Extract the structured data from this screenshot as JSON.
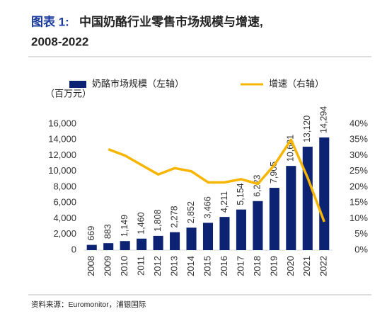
{
  "chart_data": {
    "type": "bar",
    "title_label": "图表 1:",
    "title": "中国奶酪行业零售市场规模与增速,",
    "subtitle": "2008-2022",
    "y_label": "（百万元）",
    "source": "资料来源：Euromonitor，浦银国际",
    "categories": [
      "2008",
      "2009",
      "2010",
      "2011",
      "2012",
      "2013",
      "2014",
      "2015",
      "2016",
      "2017",
      "2018",
      "2019",
      "2020",
      "2021",
      "2022"
    ],
    "series": [
      {
        "name": "奶酪市场规模（左轴）",
        "type": "bar",
        "color": "#0c2374",
        "values": [
          669,
          883,
          1149,
          1460,
          1808,
          2278,
          2852,
          3466,
          4211,
          5154,
          6223,
          7905,
          10681,
          13120,
          14294
        ],
        "value_labels": [
          "669",
          "883",
          "1,149",
          "1,460",
          "1,808",
          "2,278",
          "2,852",
          "3,466",
          "4,211",
          "5,154",
          "6,223",
          "7,905",
          "10,681",
          "13,120",
          "14,294"
        ]
      },
      {
        "name": "增速（右轴）",
        "type": "line",
        "color": "#f7b500",
        "axis": "y2",
        "values": [
          null,
          32,
          30,
          27,
          24,
          26,
          25,
          21.5,
          21.5,
          22.5,
          21,
          27,
          35,
          23,
          9
        ]
      }
    ],
    "ylim": [
      0,
      16000
    ],
    "yticks": [
      {
        "value": 0,
        "label": "0"
      },
      {
        "value": 2000,
        "label": "2,000"
      },
      {
        "value": 4000,
        "label": "4,000"
      },
      {
        "value": 6000,
        "label": "6,000"
      },
      {
        "value": 8000,
        "label": "8,000"
      },
      {
        "value": 10000,
        "label": "10,000"
      },
      {
        "value": 12000,
        "label": "12,000"
      },
      {
        "value": 14000,
        "label": "14,000"
      },
      {
        "value": 16000,
        "label": "16,000"
      }
    ],
    "y2lim": [
      0,
      40
    ],
    "y2ticks": [
      {
        "value": 0,
        "label": "0%"
      },
      {
        "value": 5,
        "label": "5%"
      },
      {
        "value": 10,
        "label": "10%"
      },
      {
        "value": 15,
        "label": "15%"
      },
      {
        "value": 20,
        "label": "20%"
      },
      {
        "value": 25,
        "label": "25%"
      },
      {
        "value": 30,
        "label": "30%"
      },
      {
        "value": 35,
        "label": "35%"
      },
      {
        "value": 40,
        "label": "40%"
      }
    ],
    "grid": false
  }
}
